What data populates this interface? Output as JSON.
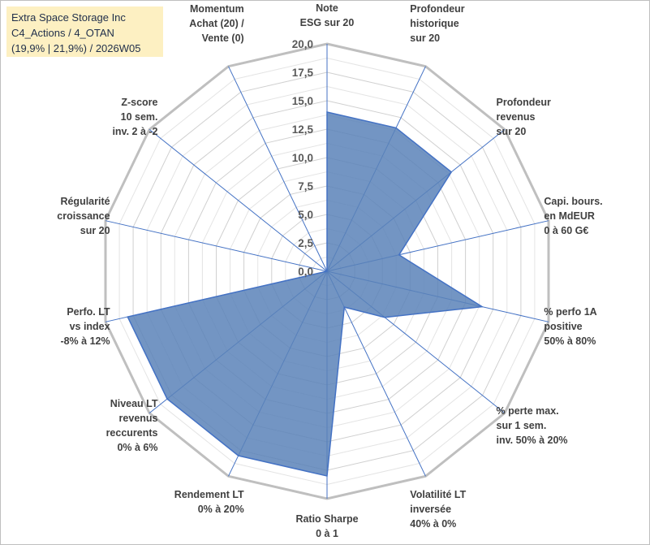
{
  "title_box": {
    "line1": "Extra Space Storage Inc",
    "line2": "C4_Actions / 4_OTAN",
    "line3": "(19,9% | 21,9%) / 2026W05"
  },
  "chart_data": {
    "type": "radar",
    "title": "Extra Space Storage Inc",
    "rmin": 0,
    "rmax": 20,
    "ticks": [
      "0,0",
      "2,5",
      "5,0",
      "7,5",
      "10,0",
      "12,5",
      "15,0",
      "17,5",
      "20,0"
    ],
    "tick_values": [
      0,
      2.5,
      5,
      7.5,
      10,
      12.5,
      15,
      17.5,
      20
    ],
    "grid_step": 1.25,
    "categories": [
      [
        "Note",
        "ESG sur 20"
      ],
      [
        "Profondeur",
        "historique",
        "sur 20"
      ],
      [
        "Profondeur",
        "revenus",
        "sur 20"
      ],
      [
        "Capi. bours.",
        "en MdEUR",
        "0 à 60 G€"
      ],
      [
        "% perfo 1A",
        "positive",
        "50% à 80%"
      ],
      [
        "% perte max.",
        "sur 1 sem.",
        "inv. 50% à 20%"
      ],
      [
        "Volatilité LT",
        "inversée",
        "40% à 0%"
      ],
      [
        "Ratio Sharpe",
        "0 à 1"
      ],
      [
        "Rendement LT",
        "0% à 20%"
      ],
      [
        "Niveau LT",
        "revenus",
        "reccurents",
        "0% à 6%"
      ],
      [
        "Perfo. LT",
        "vs index",
        "-8% à 12%"
      ],
      [
        "Régularité",
        "croissance",
        "sur 20"
      ],
      [
        "Z-score",
        "10 sem.",
        "inv. 2 à -2"
      ],
      [
        "Momentum",
        "Achat (20) /",
        "Vente (0)"
      ]
    ],
    "series": [
      {
        "name": "Extra Space Storage Inc",
        "values": [
          14,
          14,
          14,
          6.5,
          14,
          6.5,
          3.5,
          18,
          18,
          18,
          18,
          0,
          0,
          0
        ],
        "fill": "#5b83b9",
        "stroke": "#4472c4"
      }
    ]
  }
}
